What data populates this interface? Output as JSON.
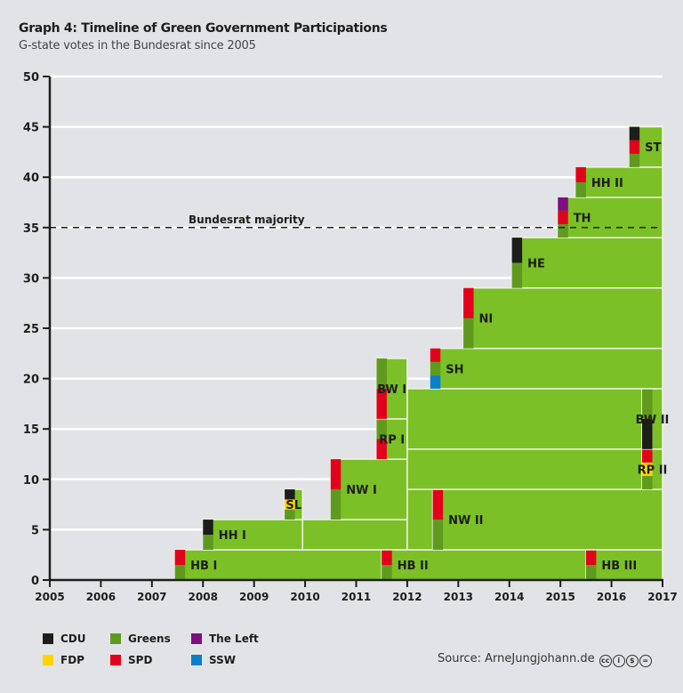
{
  "chart_data": {
    "type": "timeline-stacked-blocks",
    "title": "Graph 4: Timeline of Green Government Participations",
    "subtitle": "G-state votes in the Bundesrat since 2005",
    "xlim": [
      2005,
      2017
    ],
    "ylim": [
      0,
      50
    ],
    "xticks": [
      "2005",
      "2006",
      "2007",
      "2008",
      "2009",
      "2010",
      "2011",
      "2012",
      "2013",
      "2014",
      "2015",
      "2016",
      "2017"
    ],
    "yticks": [
      "0",
      "5",
      "10",
      "15",
      "20",
      "25",
      "30",
      "35",
      "40",
      "45",
      "50"
    ],
    "grid": true,
    "majority": {
      "value": 35,
      "label": "Bundesrat majority"
    },
    "parties": {
      "CDU": "#1d1d1b",
      "Greens": "#5f9a1f",
      "The Left": "#7e0f80",
      "FDP": "#ffd400",
      "SPD": "#e3001b",
      "SSW": "#0a80c8"
    },
    "block_color": "#7bc026",
    "blocks": [
      {
        "label": "HB I",
        "x": [
          2007.45,
          2011.5
        ],
        "y": [
          0,
          3
        ],
        "coalition": [
          [
            "Greens",
            0,
            1.5
          ],
          [
            "SPD",
            1.5,
            3
          ]
        ]
      },
      {
        "label": "HB II",
        "x": [
          2011.5,
          2015.5
        ],
        "y": [
          0,
          3
        ],
        "coalition": [
          [
            "Greens",
            0,
            1.5
          ],
          [
            "SPD",
            1.5,
            3
          ]
        ]
      },
      {
        "label": "HB III",
        "x": [
          2015.5,
          2017
        ],
        "y": [
          0,
          3
        ],
        "coalition": [
          [
            "Greens",
            0,
            1.5
          ],
          [
            "SPD",
            1.5,
            3
          ]
        ]
      },
      {
        "label": "HH I",
        "x": [
          2008.0,
          2009.95
        ],
        "y": [
          3,
          6
        ],
        "coalition": [
          [
            "Greens",
            3,
            4.5
          ],
          [
            "CDU",
            4.5,
            6
          ]
        ]
      },
      {
        "label": "",
        "x": [
          2009.95,
          2012.0
        ],
        "y": [
          3,
          6
        ],
        "coalition": []
      },
      {
        "label": "",
        "x": [
          2012.0,
          2012.5
        ],
        "y": [
          3,
          9
        ],
        "coalition": []
      },
      {
        "label": "NW II",
        "x": [
          2012.5,
          2017
        ],
        "y": [
          3,
          9
        ],
        "coalition": [
          [
            "Greens",
            3,
            6
          ],
          [
            "SPD",
            6,
            9
          ]
        ]
      },
      {
        "label": "SL",
        "x": [
          2009.6,
          2009.95
        ],
        "y": [
          6,
          9
        ],
        "coalition": [
          [
            "Greens",
            6,
            7
          ],
          [
            "FDP",
            7,
            8
          ],
          [
            "CDU",
            8,
            9
          ]
        ]
      },
      {
        "label": "NW I",
        "x": [
          2010.5,
          2012.0
        ],
        "y": [
          6,
          12
        ],
        "coalition": [
          [
            "Greens",
            6,
            9
          ],
          [
            "SPD",
            9,
            12
          ]
        ]
      },
      {
        "label": "",
        "x": [
          2012.0,
          2016.6
        ],
        "y": [
          9,
          13
        ],
        "coalition": []
      },
      {
        "label": "RP II",
        "x": [
          2016.6,
          2017
        ],
        "y": [
          9,
          13
        ],
        "coalition": [
          [
            "Greens",
            9,
            10.33
          ],
          [
            "FDP",
            10.33,
            11.67
          ],
          [
            "SPD",
            11.67,
            13
          ]
        ]
      },
      {
        "label": "RP I",
        "x": [
          2011.4,
          2012.0
        ],
        "y": [
          12,
          16
        ],
        "coalition": [
          [
            "SPD",
            12,
            14
          ],
          [
            "Greens",
            14,
            16
          ]
        ]
      },
      {
        "label": "",
        "x": [
          2012.0,
          2016.6
        ],
        "y": [
          13,
          19
        ],
        "coalition": []
      },
      {
        "label": "BW II",
        "x": [
          2016.6,
          2017
        ],
        "y": [
          13,
          19
        ],
        "coalition": [
          [
            "CDU",
            13,
            16
          ],
          [
            "Greens",
            16,
            19
          ]
        ]
      },
      {
        "label": "BW I",
        "x": [
          2011.4,
          2012.0
        ],
        "y": [
          16,
          22
        ],
        "coalition": [
          [
            "SPD",
            16,
            19
          ],
          [
            "Greens",
            19,
            22
          ]
        ]
      },
      {
        "label": "SH",
        "x": [
          2012.45,
          2017
        ],
        "y": [
          19,
          23
        ],
        "coalition": [
          [
            "SSW",
            19,
            20.33
          ],
          [
            "Greens",
            20.33,
            21.67
          ],
          [
            "SPD",
            21.67,
            23
          ]
        ]
      },
      {
        "label": "NI",
        "x": [
          2013.1,
          2017
        ],
        "y": [
          23,
          29
        ],
        "coalition": [
          [
            "Greens",
            23,
            26
          ],
          [
            "SPD",
            26,
            29
          ]
        ]
      },
      {
        "label": "HE",
        "x": [
          2014.05,
          2017
        ],
        "y": [
          29,
          34
        ],
        "coalition": [
          [
            "Greens",
            29,
            31.5
          ],
          [
            "CDU",
            31.5,
            34
          ]
        ]
      },
      {
        "label": "TH",
        "x": [
          2014.95,
          2017
        ],
        "y": [
          34,
          38
        ],
        "coalition": [
          [
            "Greens",
            34,
            35.33
          ],
          [
            "SPD",
            35.33,
            36.67
          ],
          [
            "The Left",
            36.67,
            38
          ]
        ]
      },
      {
        "label": "HH II",
        "x": [
          2015.3,
          2017
        ],
        "y": [
          38,
          41
        ],
        "coalition": [
          [
            "Greens",
            38,
            39.5
          ],
          [
            "SPD",
            39.5,
            41
          ]
        ]
      },
      {
        "label": "ST",
        "x": [
          2016.35,
          2017
        ],
        "y": [
          41,
          45
        ],
        "coalition": [
          [
            "Greens",
            41,
            42.33
          ],
          [
            "SPD",
            42.33,
            43.67
          ],
          [
            "CDU",
            43.67,
            45
          ]
        ]
      }
    ]
  },
  "legend": [
    {
      "label": "CDU",
      "color": "#1d1d1b"
    },
    {
      "label": "Greens",
      "color": "#5f9a1f"
    },
    {
      "label": "The Left",
      "color": "#7e0f80"
    },
    {
      "label": "FDP",
      "color": "#ffd400"
    },
    {
      "label": "SPD",
      "color": "#e3001b"
    },
    {
      "label": "SSW",
      "color": "#0a80c8"
    }
  ],
  "source": "Source: ArneJungjohann.de",
  "license_icons": [
    "cc-icon",
    "by-icon",
    "nc-icon",
    "nd-icon"
  ]
}
